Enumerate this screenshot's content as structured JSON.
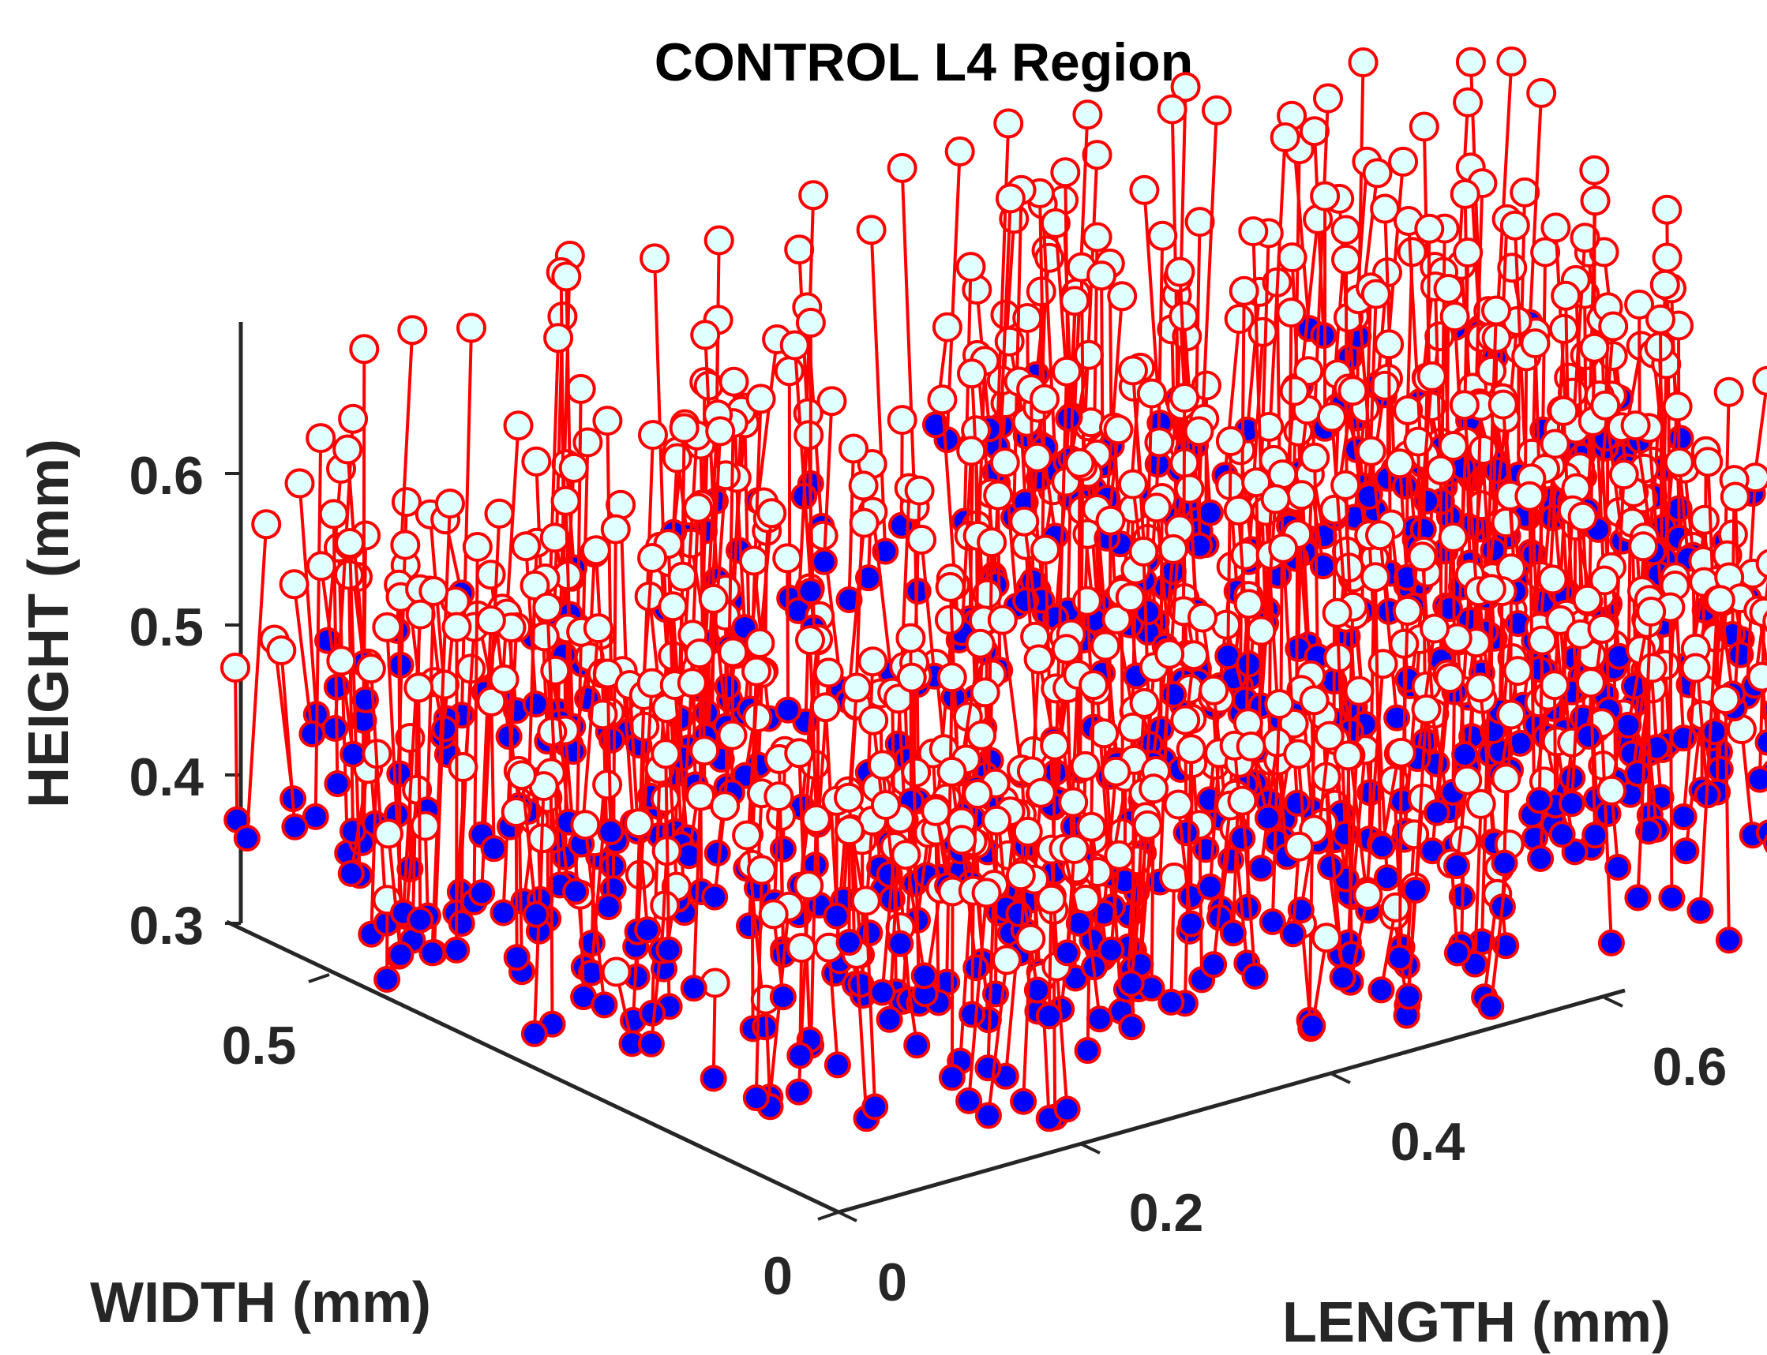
{
  "chart_data": {
    "type": "scatter3d",
    "title": "CONTROL L4 Region",
    "xlabel": "LENGTH (mm)",
    "ylabel": "WIDTH (mm)",
    "zlabel": "HEIGHT (mm)",
    "xlim": [
      0,
      0.65
    ],
    "ylim": [
      0,
      0.6
    ],
    "zlim": [
      0.3,
      0.7
    ],
    "xticks": [
      "0",
      "0.2",
      "0.4",
      "0.6"
    ],
    "yticks": [
      "0",
      "0.5"
    ],
    "zticks": [
      "0.3",
      "0.4",
      "0.5",
      "0.6"
    ],
    "grid": false,
    "series": [
      {
        "role": "cell-bases",
        "marker": "circle",
        "fill": "#0000ff",
        "edge": "#ff0000",
        "height_range": [
          0.3,
          0.5
        ]
      },
      {
        "role": "cell-tops",
        "marker": "circle",
        "fill": "#e0ffff",
        "edge": "#ff0000",
        "line_color": "#ff0000",
        "height_range": [
          0.32,
          0.7
        ]
      }
    ],
    "columns": [
      [
        0.02,
        0.45,
        0.3,
        0.62
      ],
      [
        0.05,
        0.58,
        0.32,
        0.66
      ],
      [
        0.15,
        0.57,
        0.34,
        0.68
      ],
      [
        0.27,
        0.58,
        0.33,
        0.7
      ],
      [
        0.38,
        0.58,
        0.36,
        0.69
      ],
      [
        0.46,
        0.58,
        0.34,
        0.68
      ],
      [
        0.55,
        0.58,
        0.35,
        0.66
      ],
      [
        0.63,
        0.57,
        0.33,
        0.64
      ],
      [
        0.03,
        0.34,
        0.31,
        0.58
      ],
      [
        0.1,
        0.4,
        0.32,
        0.6
      ],
      [
        0.2,
        0.46,
        0.33,
        0.66
      ],
      [
        0.31,
        0.44,
        0.3,
        0.64
      ],
      [
        0.4,
        0.45,
        0.33,
        0.62
      ],
      [
        0.5,
        0.47,
        0.31,
        0.67
      ],
      [
        0.58,
        0.46,
        0.32,
        0.63
      ],
      [
        0.64,
        0.44,
        0.3,
        0.6
      ],
      [
        0.05,
        0.22,
        0.31,
        0.56
      ],
      [
        0.14,
        0.25,
        0.3,
        0.59
      ],
      [
        0.22,
        0.3,
        0.32,
        0.6
      ],
      [
        0.33,
        0.3,
        0.31,
        0.61
      ],
      [
        0.42,
        0.28,
        0.3,
        0.6
      ],
      [
        0.52,
        0.3,
        0.31,
        0.62
      ],
      [
        0.6,
        0.3,
        0.3,
        0.59
      ],
      [
        0.06,
        0.1,
        0.31,
        0.52
      ],
      [
        0.16,
        0.12,
        0.3,
        0.56
      ],
      [
        0.25,
        0.15,
        0.31,
        0.58
      ],
      [
        0.35,
        0.14,
        0.3,
        0.57
      ],
      [
        0.45,
        0.14,
        0.31,
        0.58
      ],
      [
        0.55,
        0.15,
        0.3,
        0.55
      ],
      [
        0.12,
        0.03,
        0.3,
        0.5
      ],
      [
        0.22,
        0.05,
        0.31,
        0.52
      ],
      [
        0.32,
        0.04,
        0.3,
        0.54
      ],
      [
        0.42,
        0.06,
        0.31,
        0.53
      ],
      [
        0.5,
        0.04,
        0.3,
        0.52
      ]
    ]
  }
}
